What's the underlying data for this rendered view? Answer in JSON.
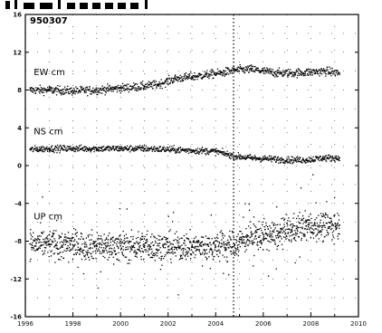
{
  "chart_data": {
    "type": "scatter",
    "title": "",
    "station": "950307",
    "xlabel": "",
    "ylabel": "",
    "xlim": [
      1996,
      2010
    ],
    "ylim": [
      -16,
      16
    ],
    "x_ticks": [
      1996,
      1998,
      2000,
      2002,
      2004,
      2006,
      2008,
      2010
    ],
    "x_tick_labels": [
      "1996",
      "1998",
      "2000",
      "2002",
      "2004",
      "2006",
      "2008",
      "2010"
    ],
    "y_ticks": [
      -16,
      -12,
      -8,
      -4,
      0,
      4,
      8,
      12,
      16
    ],
    "y_tick_labels": [
      "-16",
      "-12",
      "-8",
      "-4",
      "0",
      "4",
      "8",
      "12",
      "16"
    ],
    "grid": "dotted",
    "event_marker_x": 2004.75,
    "series_labels": [
      "EW cm",
      "NS cm",
      "UP cm"
    ],
    "series": [
      {
        "name": "EW cm",
        "label_at": [
          1996.35,
          9.6
        ],
        "x": [
          1996.2,
          1997,
          1998,
          1999,
          2000,
          2001,
          2001.6,
          2002.3,
          2003,
          2003.6,
          2004.2,
          2004.8,
          2005.5,
          2006,
          2006.6,
          2007.3,
          2008,
          2008.6,
          2009.2
        ],
        "values": [
          8.0,
          8.0,
          7.9,
          8.0,
          8.2,
          8.4,
          8.6,
          9.2,
          9.4,
          9.6,
          9.8,
          10.1,
          10.2,
          10.0,
          9.8,
          9.8,
          9.9,
          10.0,
          9.8
        ],
        "scatter": 0.45
      },
      {
        "name": "NS cm",
        "label_at": [
          1996.35,
          3.3
        ],
        "x": [
          1996.2,
          1997,
          1998,
          1999,
          2000,
          2001,
          2002,
          2003,
          2004,
          2004.8,
          2005.5,
          2006.3,
          2007,
          2007.8,
          2008.5,
          2009.2
        ],
        "values": [
          1.7,
          1.8,
          1.8,
          1.8,
          1.8,
          1.8,
          1.7,
          1.6,
          1.5,
          1.0,
          0.8,
          0.7,
          0.6,
          0.6,
          0.8,
          0.8
        ],
        "scatter": 0.35
      },
      {
        "name": "UP cm",
        "label_at": [
          1996.35,
          -5.7
        ],
        "x": [
          1996.2,
          1997,
          1998,
          1999,
          2000,
          2001,
          2002,
          2003,
          2004,
          2004.8,
          2005.3,
          2006,
          2006.6,
          2007.2,
          2007.8,
          2008.5,
          2009.2
        ],
        "values": [
          -8.3,
          -8.3,
          -8.4,
          -8.5,
          -8.5,
          -8.5,
          -8.6,
          -8.6,
          -8.6,
          -8.4,
          -7.6,
          -7.3,
          -7.4,
          -6.8,
          -6.4,
          -6.4,
          -6.3
        ],
        "scatter": 1.5
      }
    ]
  }
}
